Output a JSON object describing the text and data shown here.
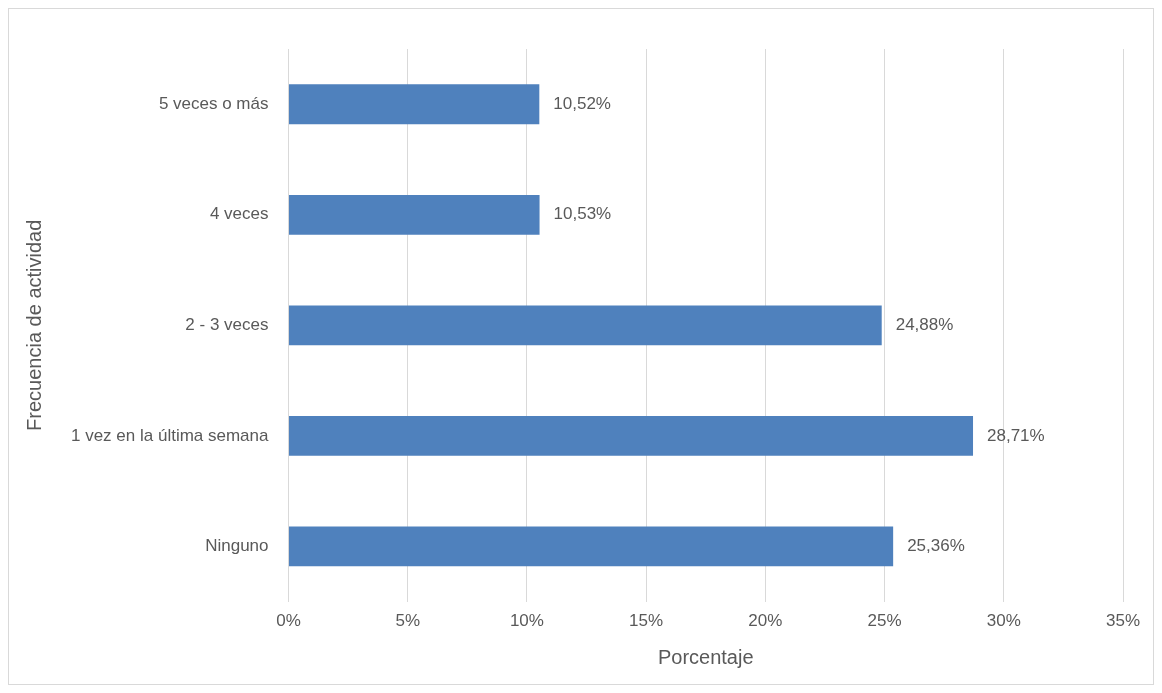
{
  "chart_data": {
    "type": "bar",
    "orientation": "horizontal",
    "xlabel": "Porcentaje",
    "ylabel": "Frecuencia de actividad",
    "categories": [
      "5 veces o más",
      "4 veces",
      "2 - 3 veces",
      "1 vez en la última semana",
      "Ninguno"
    ],
    "values": [
      10.52,
      10.53,
      24.88,
      28.71,
      25.36
    ],
    "value_labels": [
      "10,52%",
      "10,53%",
      "24,88%",
      "28,71%",
      "25,36%"
    ],
    "color": "#4f81bd",
    "xlim": [
      0,
      35
    ],
    "xticks": [
      {
        "value": 0,
        "label": "0%"
      },
      {
        "value": 5,
        "label": "5%"
      },
      {
        "value": 10,
        "label": "10%"
      },
      {
        "value": 15,
        "label": "15%"
      },
      {
        "value": 20,
        "label": "20%"
      },
      {
        "value": 25,
        "label": "25%"
      },
      {
        "value": 30,
        "label": "30%"
      },
      {
        "value": 35,
        "label": "35%"
      }
    ],
    "grid": "x",
    "legend": false
  }
}
